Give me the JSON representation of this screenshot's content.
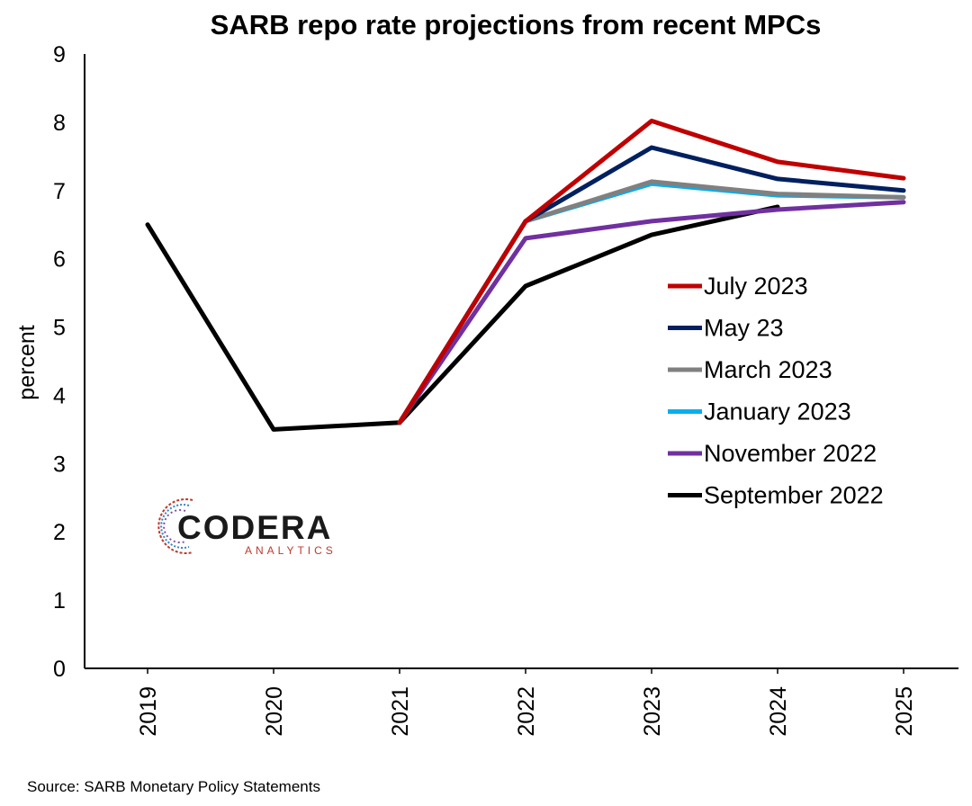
{
  "chart_data": {
    "type": "line",
    "title": "SARB repo rate projections from recent MPCs",
    "xlabel": "",
    "ylabel": "percent",
    "categories": [
      "2019",
      "2020",
      "2021",
      "2022",
      "2023",
      "2024",
      "2025"
    ],
    "ylim": [
      0,
      9
    ],
    "yticks": [
      "0",
      "1",
      "2",
      "3",
      "4",
      "5",
      "6",
      "7",
      "8",
      "9"
    ],
    "grid": false,
    "legend_position": "right",
    "series": [
      {
        "name": "July 2023",
        "color": "#c00000",
        "values": [
          null,
          null,
          3.6,
          6.55,
          8.02,
          7.42,
          7.18
        ]
      },
      {
        "name": "May 23",
        "color": "#002060",
        "values": [
          null,
          null,
          3.6,
          6.55,
          7.63,
          7.17,
          7.0
        ]
      },
      {
        "name": "March 2023",
        "color": "#808080",
        "values": [
          null,
          null,
          3.6,
          6.55,
          7.13,
          6.95,
          6.9
        ]
      },
      {
        "name": "January 2023",
        "color": "#00b0f0",
        "values": [
          null,
          null,
          3.6,
          6.55,
          7.1,
          6.93,
          6.9
        ]
      },
      {
        "name": "November 2022",
        "color": "#7030a0",
        "values": [
          null,
          null,
          3.6,
          6.3,
          6.55,
          6.72,
          6.83
        ]
      },
      {
        "name": "September 2022",
        "color": "#000000",
        "values": [
          6.5,
          3.5,
          3.6,
          5.6,
          6.35,
          6.76,
          null
        ]
      }
    ],
    "source": "Source: SARB Monetary Policy Statements"
  },
  "logo": {
    "main": "CODERA",
    "sub": "ANALYTICS"
  }
}
